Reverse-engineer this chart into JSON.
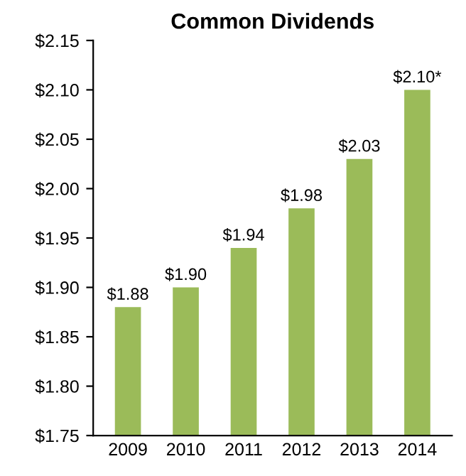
{
  "chart_data": {
    "type": "bar",
    "title": "Common Dividends",
    "categories": [
      "2009",
      "2010",
      "2011",
      "2012",
      "2013",
      "2014"
    ],
    "values": [
      1.88,
      1.9,
      1.94,
      1.98,
      2.03,
      2.1
    ],
    "value_labels": [
      "$1.88",
      "$1.90",
      "$1.94",
      "$1.98",
      "$2.03",
      "$2.10*"
    ],
    "color": "#9bbb59",
    "ylim": [
      1.75,
      2.15
    ],
    "yticks": [
      {
        "value": 1.75,
        "label": "$1.75"
      },
      {
        "value": 1.8,
        "label": "$1.80"
      },
      {
        "value": 1.85,
        "label": "$1.85"
      },
      {
        "value": 1.9,
        "label": "$1.90"
      },
      {
        "value": 1.95,
        "label": "$1.95"
      },
      {
        "value": 2.0,
        "label": "$2.00"
      },
      {
        "value": 2.05,
        "label": "$2.05"
      },
      {
        "value": 2.1,
        "label": "$2.10"
      },
      {
        "value": 2.15,
        "label": "$2.15"
      }
    ],
    "grid": false
  }
}
